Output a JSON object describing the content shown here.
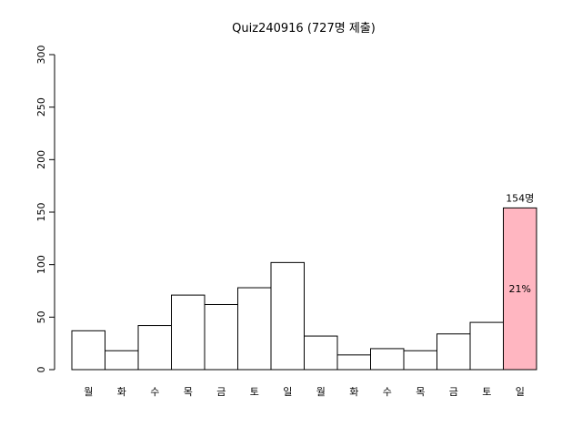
{
  "chart_data": {
    "type": "bar",
    "title": "Quiz240916 (727명 제출)",
    "categories": [
      "월",
      "화",
      "수",
      "목",
      "금",
      "토",
      "일",
      "월",
      "화",
      "수",
      "목",
      "금",
      "토",
      "일"
    ],
    "values": [
      37,
      18,
      42,
      71,
      62,
      78,
      102,
      32,
      14,
      20,
      18,
      34,
      45,
      154
    ],
    "bar_colors": [
      "#ffffff",
      "#ffffff",
      "#ffffff",
      "#ffffff",
      "#ffffff",
      "#ffffff",
      "#ffffff",
      "#ffffff",
      "#ffffff",
      "#ffffff",
      "#ffffff",
      "#ffffff",
      "#ffffff",
      "#ffb6c1"
    ],
    "ylim": [
      0,
      300
    ],
    "y_ticks": [
      0,
      50,
      100,
      150,
      200,
      250,
      300
    ],
    "xlabel": "",
    "ylabel": "",
    "annotations": [
      {
        "bar_index": 13,
        "position": "above",
        "text": "154명"
      },
      {
        "bar_index": 13,
        "position": "middle",
        "text": "21%"
      }
    ]
  }
}
